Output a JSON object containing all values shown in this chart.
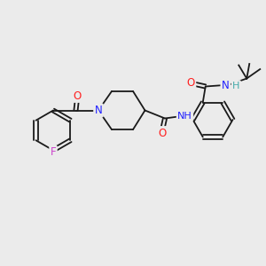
{
  "bg_color": "#ebebeb",
  "bond_color": "#1a1a1a",
  "atom_colors": {
    "O": "#ff2020",
    "N": "#2020ff",
    "F": "#cc44cc",
    "H": "#44aaaa",
    "C": "#1a1a1a"
  },
  "font_size": 8.5,
  "bond_width": 1.3
}
